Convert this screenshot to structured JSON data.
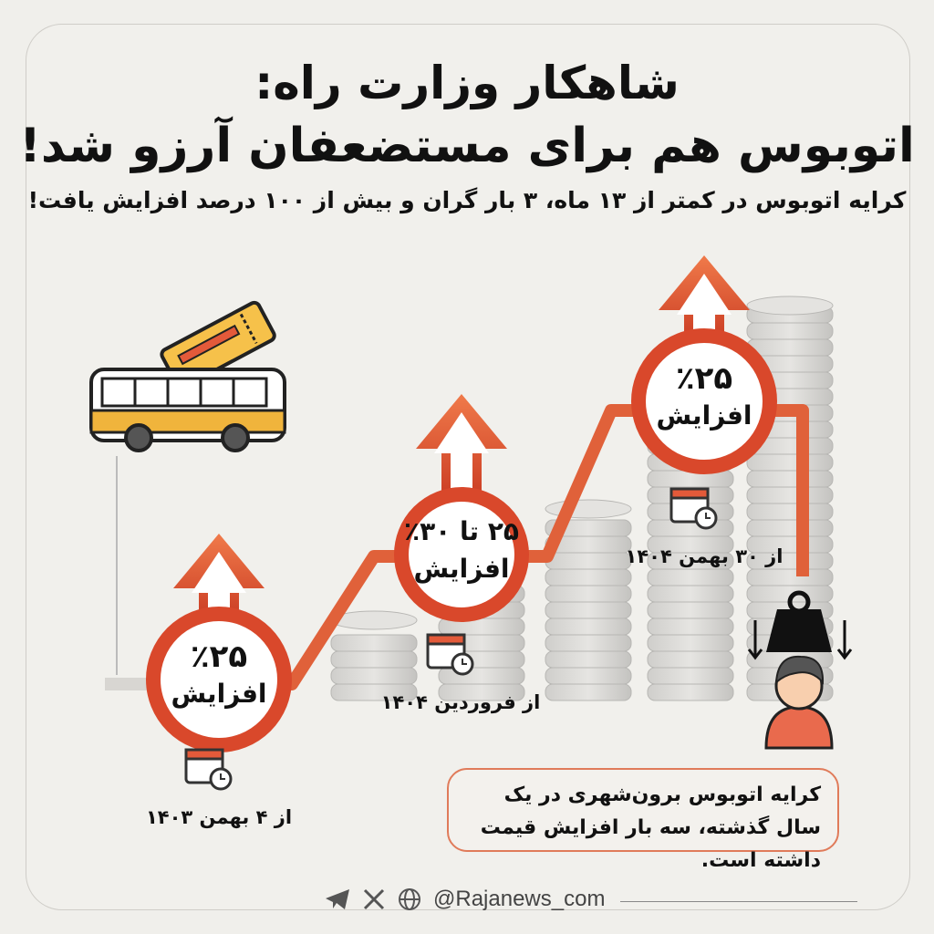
{
  "header": {
    "title_line1": "شاهکار وزارت راه:",
    "title_line2": "اتوبوس هم برای مستضعفان آرزو شد!",
    "subtitle": "کرایه اتوبوس در کمتر از ۱۳ ماه، ۳ بار گران و بیش از ۱۰۰ درصد افزایش یافت!"
  },
  "steps": [
    {
      "percent": "٪۲۵",
      "label": "افزایش",
      "date": "از ۴ بهمن ۱۴۰۳"
    },
    {
      "percent": "۲۵ تا ۳۰٪",
      "label": "افزایش",
      "date": "از فروردین ۱۴۰۴"
    },
    {
      "percent": "٪۲۵",
      "label": "افزایش",
      "date": "از ۳۰ بهمن ۱۴۰۴"
    }
  ],
  "note": {
    "text": "کرایه اتوبوس برون‌شهری در یک سال گذشته، سه بار افزایش قیمت داشته است."
  },
  "footer": {
    "handle": "@Rajanews_com",
    "icons": [
      "telegram-icon",
      "x-icon",
      "globe-icon"
    ]
  },
  "colors": {
    "accent": "#d9482b",
    "arrow": "#e8643a",
    "bus": "#f0b43c",
    "background": "#f0efeb"
  }
}
